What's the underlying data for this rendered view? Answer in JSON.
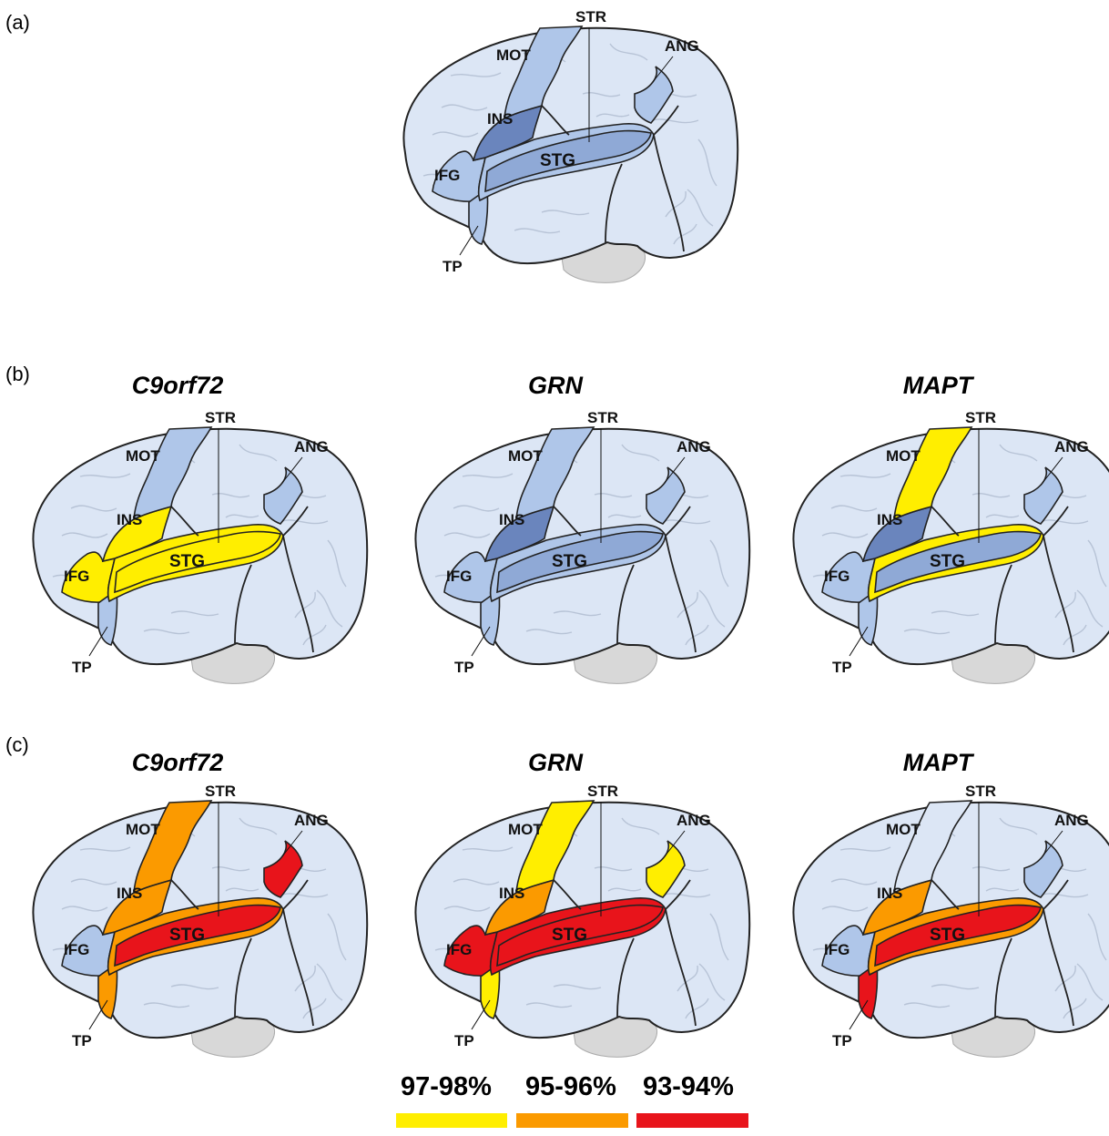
{
  "colors": {
    "base": "#dce6f5",
    "light": "#afc6e9",
    "medium": "#8fa9d6",
    "dark": "#6a85bd",
    "yellow": "#ffee00",
    "orange": "#fb9a00",
    "red": "#e8141b",
    "outline": "#222222",
    "gyri": "#b7c3d6",
    "cerebellum": "#d8d8d8"
  },
  "region_labels": {
    "mot": "MOT",
    "ins": "INS",
    "ifg": "IFG",
    "stg": "STG",
    "tp": "TP",
    "str": "STR",
    "ang": "ANG"
  },
  "panels": {
    "a": {
      "label": "(a)",
      "brain": {
        "mot": "light",
        "ins": "dark",
        "ifg": "light",
        "stg": "light",
        "tp": "light",
        "str": "medium",
        "ang": "light"
      }
    },
    "b": {
      "label": "(b)",
      "brains": [
        {
          "title": "C9orf72",
          "regions": {
            "mot": "light",
            "ins": "yellow",
            "ifg": "yellow",
            "stg": "yellow",
            "tp": "light",
            "str": "yellow",
            "ang": "light"
          }
        },
        {
          "title": "GRN",
          "regions": {
            "mot": "light",
            "ins": "dark",
            "ifg": "light",
            "stg": "light",
            "tp": "light",
            "str": "medium",
            "ang": "light"
          }
        },
        {
          "title": "MAPT",
          "regions": {
            "mot": "yellow",
            "ins": "dark",
            "ifg": "light",
            "stg": "yellow",
            "tp": "light",
            "str": "medium",
            "ang": "light"
          }
        }
      ]
    },
    "c": {
      "label": "(c)",
      "brains": [
        {
          "title": "C9orf72",
          "regions": {
            "mot": "orange",
            "ins": "orange",
            "ifg": "light",
            "stg": "orange",
            "tp": "orange",
            "str": "red",
            "ang": "red"
          }
        },
        {
          "title": "GRN",
          "regions": {
            "mot": "yellow",
            "ins": "orange",
            "ifg": "red",
            "stg": "red",
            "tp": "yellow",
            "str": "red",
            "ang": "yellow"
          }
        },
        {
          "title": "MAPT",
          "regions": {
            "mot": "base",
            "ins": "orange",
            "ifg": "light",
            "stg": "orange",
            "tp": "red",
            "str": "red",
            "ang": "light"
          }
        }
      ]
    }
  },
  "legend": [
    {
      "label": "97-98%",
      "color": "#ffee00"
    },
    {
      "label": "95-96%",
      "color": "#fb9a00"
    },
    {
      "label": "93-94%",
      "color": "#e8141b"
    }
  ]
}
